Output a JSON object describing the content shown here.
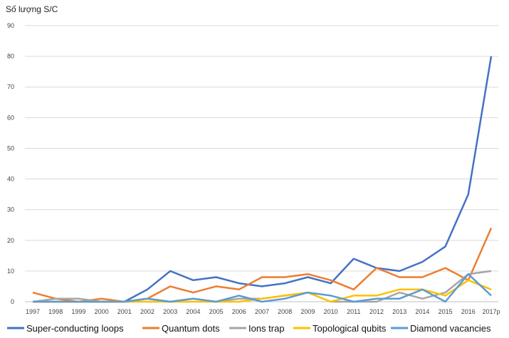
{
  "chart_data": {
    "type": "line",
    "title": "",
    "ylabel": "Số lượng S/C",
    "xlabel": "",
    "ylim": [
      0,
      90
    ],
    "y_ticks": [
      0,
      10,
      20,
      30,
      40,
      50,
      60,
      70,
      80,
      90
    ],
    "grid": "horizontal",
    "legend_position": "bottom",
    "categories": [
      "1997",
      "1998",
      "1999",
      "2000",
      "2001",
      "2002",
      "2003",
      "2004",
      "2005",
      "2006",
      "2007",
      "2008",
      "2009",
      "2010",
      "2011",
      "2012",
      "2013",
      "2014",
      "2015",
      "2016",
      "2017p"
    ],
    "series": [
      {
        "name": "Super-conducting loops",
        "color": "#4472C4",
        "values": [
          0,
          0,
          0,
          0,
          0,
          4,
          10,
          7,
          8,
          6,
          5,
          6,
          8,
          6,
          14,
          11,
          10,
          13,
          18,
          35,
          80
        ]
      },
      {
        "name": "Quantum dots",
        "color": "#ED7D31",
        "values": [
          3,
          1,
          0,
          1,
          0,
          1,
          5,
          3,
          5,
          4,
          8,
          8,
          9,
          7,
          4,
          11,
          8,
          8,
          11,
          7,
          24
        ]
      },
      {
        "name": "Ions trap",
        "color": "#A5A5A5",
        "values": [
          0,
          1,
          1,
          0,
          0,
          1,
          0,
          1,
          0,
          1,
          1,
          2,
          3,
          0,
          0,
          0,
          3,
          1,
          3,
          9,
          10
        ]
      },
      {
        "name": "Topological qubits",
        "color": "#FFC000",
        "values": [
          0,
          0,
          0,
          0,
          0,
          0,
          0,
          0,
          0,
          0,
          1,
          2,
          3,
          0,
          2,
          2,
          4,
          4,
          2,
          7,
          4
        ]
      },
      {
        "name": "Diamond vacancies",
        "color": "#5B9BD5",
        "values": [
          0,
          0,
          0,
          0,
          0,
          1,
          0,
          1,
          0,
          2,
          0,
          1,
          3,
          2,
          0,
          1,
          1,
          4,
          0,
          9,
          2
        ]
      }
    ]
  }
}
